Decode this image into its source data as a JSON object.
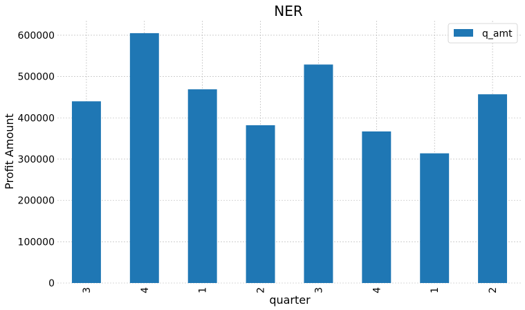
{
  "chart_data": {
    "type": "bar",
    "title": "NER",
    "xlabel": "quarter",
    "ylabel": "Profit Amount",
    "categories": [
      "3",
      "4",
      "1",
      "2",
      "3",
      "4",
      "1",
      "2"
    ],
    "series": [
      {
        "name": "q_amt",
        "values": [
          440000,
          605000,
          469000,
          382000,
          529000,
          367000,
          314000,
          457000
        ]
      }
    ],
    "yticks": [
      0,
      100000,
      200000,
      300000,
      400000,
      500000,
      600000
    ],
    "ylim": [
      0,
      635000
    ],
    "grid": true,
    "legend_position": "top-right",
    "colors": {
      "bar": "#1f77b4"
    }
  }
}
